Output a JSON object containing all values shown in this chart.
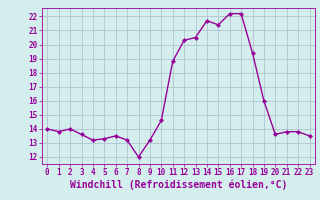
{
  "x": [
    0,
    1,
    2,
    3,
    4,
    5,
    6,
    7,
    8,
    9,
    10,
    11,
    12,
    13,
    14,
    15,
    16,
    17,
    18,
    19,
    20,
    21,
    22,
    23
  ],
  "y": [
    14.0,
    13.8,
    14.0,
    13.6,
    13.2,
    13.3,
    13.5,
    13.2,
    12.0,
    13.2,
    14.6,
    18.8,
    20.3,
    20.5,
    21.7,
    21.4,
    22.2,
    22.2,
    19.4,
    16.0,
    13.6,
    13.8,
    13.8,
    13.5
  ],
  "line_color": "#990099",
  "marker": "D",
  "marker_size": 2,
  "bg_color": "#d4eeee",
  "grid_color": "#aabbcc",
  "xlabel": "Windchill (Refroidissement éolien,°C)",
  "xlabel_color": "#990099",
  "xlim": [
    -0.5,
    23.5
  ],
  "ylim": [
    11.5,
    22.6
  ],
  "yticks": [
    12,
    13,
    14,
    15,
    16,
    17,
    18,
    19,
    20,
    21,
    22
  ],
  "xticks": [
    0,
    1,
    2,
    3,
    4,
    5,
    6,
    7,
    8,
    9,
    10,
    11,
    12,
    13,
    14,
    15,
    16,
    17,
    18,
    19,
    20,
    21,
    22,
    23
  ],
  "tick_color": "#990099",
  "tick_fontsize": 5.5,
  "xlabel_fontsize": 7.0,
  "linewidth": 1.0
}
